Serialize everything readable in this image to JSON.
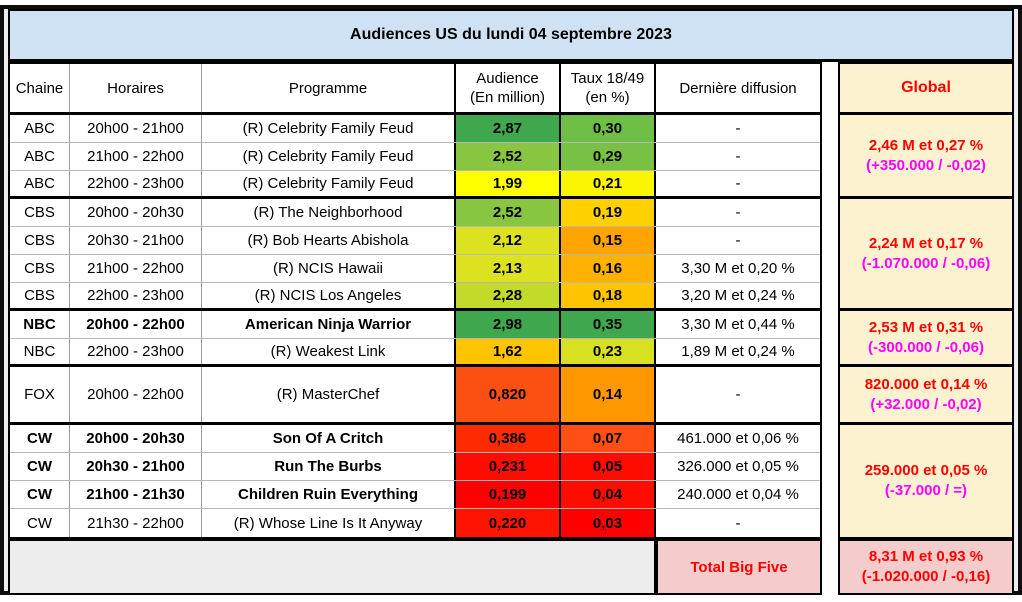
{
  "title": "Audiences US du lundi 04 septembre 2023",
  "columns": {
    "chaine": "Chaine",
    "horaires": "Horaires",
    "programme": "Programme",
    "audience_l1": "Audience",
    "audience_l2": "(En million)",
    "taux_l1": "Taux 18/49",
    "taux_l2": "(en %)",
    "derniere": "Dernière diffusion",
    "global": "Global"
  },
  "colors": {
    "title_bg": "#cfe2f3",
    "global_bg": "#fcf2cf",
    "total_bg": "#f4cccc",
    "global_line1_text": "#ff0000",
    "global_line2_text": "#ff00ff",
    "total_text": "#ff0000"
  },
  "rows": [
    {
      "chaine": "ABC",
      "horaires": "20h00 - 21h00",
      "programme": "(R) Celebrity Family Feud",
      "audience": "2,87",
      "taux": "0,30",
      "derniere": "-",
      "audience_color": "#3FA74D",
      "taux_color": "#6FBE45"
    },
    {
      "chaine": "ABC",
      "horaires": "21h00 - 22h00",
      "programme": "(R) Celebrity Family Feud",
      "audience": "2,52",
      "taux": "0,29",
      "derniere": "-",
      "audience_color": "#88C641",
      "taux_color": "#79C144"
    },
    {
      "chaine": "ABC",
      "horaires": "22h00 - 23h00",
      "programme": "(R) Celebrity Family Feud",
      "audience": "1,99",
      "taux": "0,21",
      "derniere": "-",
      "audience_color": "#FFFF00",
      "taux_color": "#FAF500"
    },
    {
      "chaine": "CBS",
      "horaires": "20h00 - 20h30",
      "programme": "(R) The Neighborhood",
      "audience": "2,52",
      "taux": "0,19",
      "derniere": "-",
      "audience_color": "#88C641",
      "taux_color": "#FFD100"
    },
    {
      "chaine": "CBS",
      "horaires": "20h30 - 21h00",
      "programme": "(R) Bob Hearts Abishola",
      "audience": "2,12",
      "taux": "0,15",
      "derniere": "-",
      "audience_color": "#DCE120",
      "taux_color": "#FFA400"
    },
    {
      "chaine": "CBS",
      "horaires": "21h00 - 22h00",
      "programme": "(R) NCIS Hawaii",
      "audience": "2,13",
      "taux": "0,16",
      "derniere": "3,30 M et 0,20 %",
      "audience_color": "#DCE120",
      "taux_color": "#FFB100"
    },
    {
      "chaine": "CBS",
      "horaires": "22h00 - 23h00",
      "programme": "(R) NCIS Los Angeles",
      "audience": "2,28",
      "taux": "0,18",
      "derniere": "3,20 M et 0,24 %",
      "audience_color": "#C3DA2B",
      "taux_color": "#FFC400"
    },
    {
      "chaine": "NBC",
      "horaires": "20h00 - 22h00",
      "programme": "American Ninja Warrior",
      "audience": "2,98",
      "taux": "0,35",
      "derniere": "3,30 M et 0,44 %",
      "audience_color": "#3FA74D",
      "taux_color": "#3FA74D"
    },
    {
      "chaine": "NBC",
      "horaires": "22h00 - 23h00",
      "programme": "(R) Weakest Link",
      "audience": "1,62",
      "taux": "0,23",
      "derniere": "1,89 M et 0,24 %",
      "audience_color": "#FFC400",
      "taux_color": "#D8E022"
    },
    {
      "chaine": "FOX",
      "horaires": "20h00 - 22h00",
      "programme": "(R) MasterChef",
      "audience": "0,820",
      "taux": "0,14",
      "derniere": "-",
      "audience_color": "#FC4F12",
      "taux_color": "#FF9800"
    },
    {
      "chaine": "CW",
      "horaires": "20h00 - 20h30",
      "programme": "Son Of A Critch",
      "audience": "0,386",
      "taux": "0,07",
      "derniere": "461.000 et 0,06 %",
      "audience_color": "#FF2B00",
      "taux_color": "#FF4F14"
    },
    {
      "chaine": "CW",
      "horaires": "20h30 - 21h00",
      "programme": "Run The Burbs",
      "audience": "0,231",
      "taux": "0,05",
      "derniere": "326.000 et 0,05 %",
      "audience_color": "#FF0C00",
      "taux_color": "#FF0C00"
    },
    {
      "chaine": "CW",
      "horaires": "21h00 - 21h30",
      "programme": "Children Ruin Everything",
      "audience": "0,199",
      "taux": "0,04",
      "derniere": "240.000 et 0,04 %",
      "audience_color": "#FF0000",
      "taux_color": "#FF0C00"
    },
    {
      "chaine": "CW",
      "horaires": "21h30 - 22h00",
      "programme": "(R) Whose Line Is It Anyway",
      "audience": "0,220",
      "taux": "0,03",
      "derniere": "-",
      "audience_color": "#FF1400",
      "taux_color": "#FF0000"
    }
  ],
  "globals": [
    {
      "group": "ABC",
      "line1": "2,46 M et 0,27 %",
      "line2": "(+350.000 / -0,02)"
    },
    {
      "group": "CBS",
      "line1": "2,24 M et 0,17 %",
      "line2": "(-1.070.000 / -0,06)"
    },
    {
      "group": "NBC",
      "line1": "2,53 M et 0,31 %",
      "line2": "(-300.000 / -0,06)"
    },
    {
      "group": "FOX",
      "line1": "820.000 et 0,14 %",
      "line2": "(+32.000 / -0,02)"
    },
    {
      "group": "CW",
      "line1": "259.000 et 0,05 %",
      "line2": "(-37.000 / =)"
    }
  ],
  "total": {
    "label": "Total Big Five",
    "line1": "8,31 M et 0,93 %",
    "line2": "(-1.020.000 / -0,16)"
  }
}
